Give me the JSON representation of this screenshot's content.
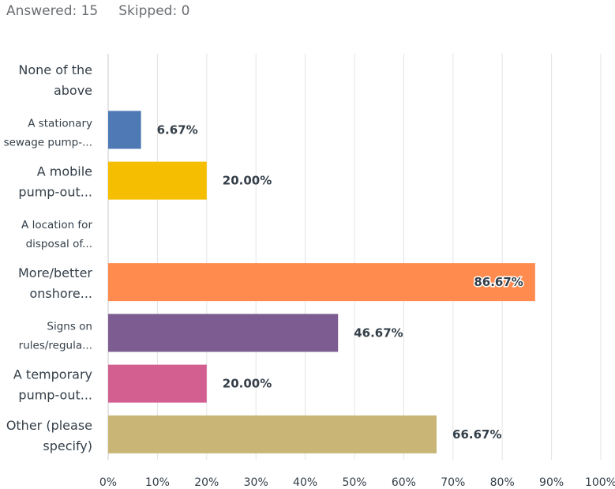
{
  "summary": {
    "answered": "Answered: 15",
    "skipped": "Skipped: 0"
  },
  "chart_data": {
    "type": "bar",
    "orientation": "horizontal",
    "categories": [
      [
        "None of the",
        "above"
      ],
      [
        "A stationary",
        "sewage pump-..."
      ],
      [
        "A mobile",
        "pump-out..."
      ],
      [
        "A location for",
        "disposal of..."
      ],
      [
        "More/better",
        "onshore..."
      ],
      [
        "Signs on",
        "rules/regula..."
      ],
      [
        "A temporary",
        "pump-out..."
      ],
      [
        "Other (please",
        "specify)"
      ]
    ],
    "values": [
      0,
      6.67,
      20.0,
      0,
      86.67,
      46.67,
      20.0,
      66.67
    ],
    "value_labels": [
      "",
      "6.67%",
      "20.00%",
      "",
      "86.67%",
      "46.67%",
      "20.00%",
      "66.67%"
    ],
    "colors": [
      "#4e79b5",
      "#4e79b5",
      "#f5be00",
      "#f5be00",
      "#ff8b4f",
      "#7d5d91",
      "#d25f90",
      "#c9b677"
    ],
    "xticks": [
      "0%",
      "10%",
      "20%",
      "30%",
      "40%",
      "50%",
      "60%",
      "70%",
      "80%",
      "90%",
      "100%"
    ],
    "xlim": [
      0,
      100
    ],
    "grid": true,
    "title": "",
    "xlabel": "",
    "ylabel": ""
  }
}
